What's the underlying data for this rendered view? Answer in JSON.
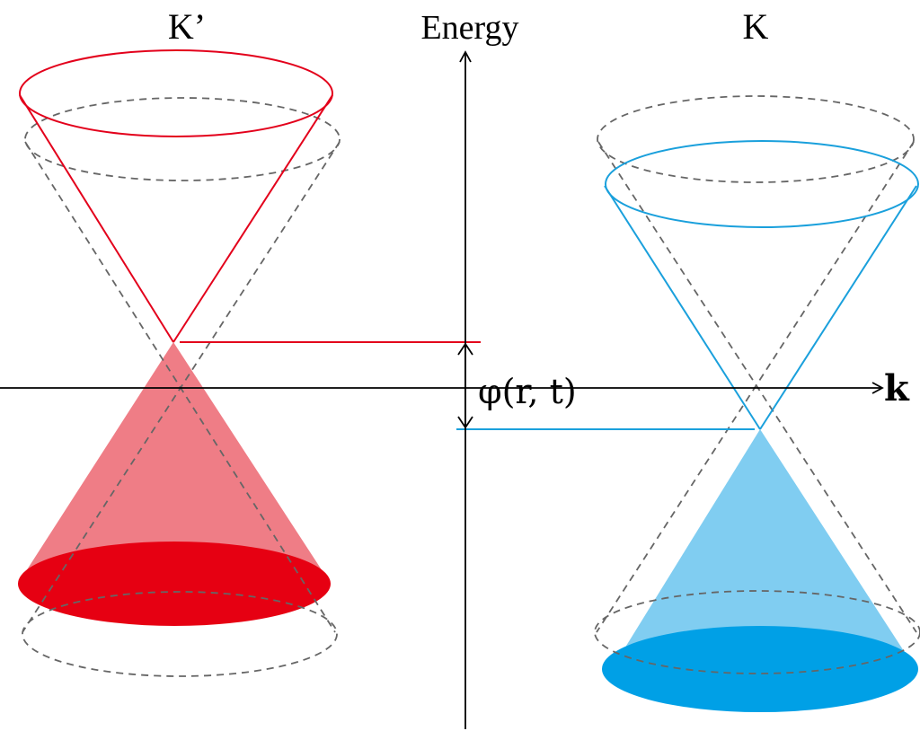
{
  "labels": {
    "valley_left": "K’",
    "valley_right": "K",
    "energy_axis": "Energy",
    "momentum_axis": "k",
    "potential": "φ(r, t)"
  },
  "colors": {
    "left_valley": "#e3001b",
    "left_valley_fill": "#ef7d86",
    "left_valley_base": "#e60012",
    "right_valley": "#1aa0dc",
    "right_valley_fill": "#80cdf1",
    "right_valley_base": "#00a0e6",
    "reference_dashed": "#666666",
    "axes": "#000000"
  }
}
